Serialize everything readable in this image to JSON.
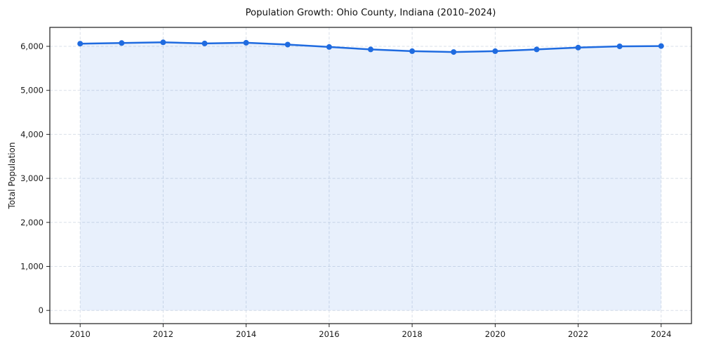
{
  "chart_data": {
    "type": "area",
    "title": "Population Growth: Ohio County, Indiana (2010–2024)",
    "xlabel": "",
    "ylabel": "Total Population",
    "x": [
      2010,
      2011,
      2012,
      2013,
      2014,
      2015,
      2016,
      2017,
      2018,
      2019,
      2020,
      2021,
      2022,
      2023,
      2024
    ],
    "series": [
      {
        "name": "Total Population",
        "values": [
          6060,
          6075,
          6090,
          6065,
          6080,
          6040,
          5985,
          5930,
          5890,
          5870,
          5890,
          5930,
          5970,
          6000,
          6005
        ]
      }
    ],
    "xticks": {
      "values": [
        2010,
        2012,
        2014,
        2016,
        2018,
        2020,
        2022,
        2024
      ],
      "labels": [
        "2010",
        "2012",
        "2014",
        "2016",
        "2018",
        "2020",
        "2022",
        "2024"
      ]
    },
    "yticks": {
      "values": [
        0,
        1000,
        2000,
        3000,
        4000,
        5000,
        6000
      ],
      "labels": [
        "0",
        "1,000",
        "2,000",
        "3,000",
        "4,000",
        "5,000",
        "6,000"
      ]
    },
    "xlim": [
      2009.27,
      2024.73
    ],
    "ylim": [
      -300,
      6430
    ],
    "grid": true,
    "legend": "none",
    "area_baseline": 0,
    "styles": {
      "line_color": "#1f6be0",
      "fill_color": "rgba(31,107,224,0.10)",
      "grid_color": "#d9dfe8",
      "axis_color": "#1a1a1a",
      "tick_color": "#262626",
      "tick_label_color": "#1a1a1a",
      "line_width": 2.5,
      "marker_size": 4
    }
  }
}
